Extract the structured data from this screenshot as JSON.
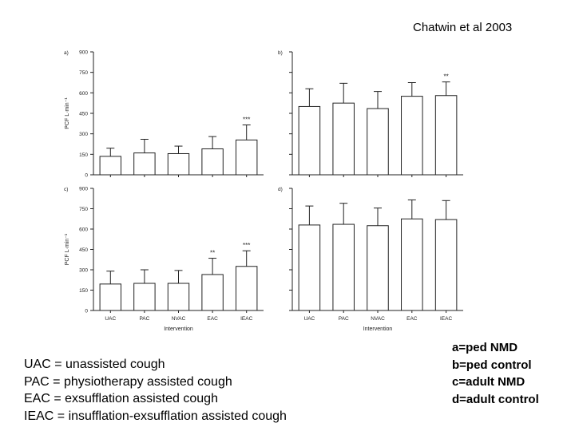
{
  "source": "Chatwin et al 2003",
  "abbreviations": [
    "UAC = unassisted cough",
    "PAC = physiotherapy assisted cough",
    "EAC = exsufflation assisted cough",
    "IEAC = insufflation-exsufflation assisted cough"
  ],
  "panel_legend": [
    "a=ped NMD",
    "b=ped control",
    "c=adult NMD",
    "d=adult control"
  ],
  "chart_data": [
    {
      "panel": "a)",
      "type": "bar",
      "categories": [
        "UAC",
        "PAC",
        "NVAC",
        "EAC",
        "IEAC"
      ],
      "values": [
        135,
        160,
        155,
        190,
        255
      ],
      "error_upper": [
        195,
        260,
        210,
        280,
        365
      ],
      "significance": [
        "",
        "",
        "",
        "",
        "***"
      ],
      "ylabel": "PCF L·min⁻¹",
      "ylim": [
        0,
        900
      ],
      "yticks": [
        0,
        150,
        300,
        450,
        600,
        750,
        900
      ]
    },
    {
      "panel": "b)",
      "type": "bar",
      "categories": [
        "UAC",
        "PAC",
        "NVAC",
        "EAC",
        "IEAC"
      ],
      "values": [
        500,
        525,
        485,
        575,
        580
      ],
      "error_upper": [
        630,
        670,
        610,
        675,
        680
      ],
      "significance": [
        "",
        "",
        "",
        "",
        "**"
      ],
      "ylim": [
        0,
        900
      ]
    },
    {
      "panel": "c)",
      "type": "bar",
      "categories": [
        "UAC",
        "PAC",
        "NVAC",
        "EAC",
        "IEAC"
      ],
      "values": [
        195,
        200,
        200,
        265,
        325
      ],
      "error_upper": [
        290,
        300,
        295,
        385,
        440
      ],
      "significance": [
        "",
        "",
        "",
        "**",
        "***"
      ],
      "ylabel": "PCF L·min⁻¹",
      "ylim": [
        0,
        900
      ],
      "yticks": [
        0,
        150,
        300,
        450,
        600,
        750,
        900
      ],
      "xlabel": "Intervention"
    },
    {
      "panel": "d)",
      "type": "bar",
      "categories": [
        "UAC",
        "PAC",
        "NVAC",
        "EAC",
        "IEAC"
      ],
      "values": [
        630,
        635,
        625,
        675,
        670
      ],
      "error_upper": [
        770,
        790,
        755,
        815,
        810
      ],
      "significance": [
        "",
        "",
        "",
        "",
        ""
      ],
      "ylim": [
        0,
        900
      ],
      "xlabel": "Intervention"
    }
  ]
}
